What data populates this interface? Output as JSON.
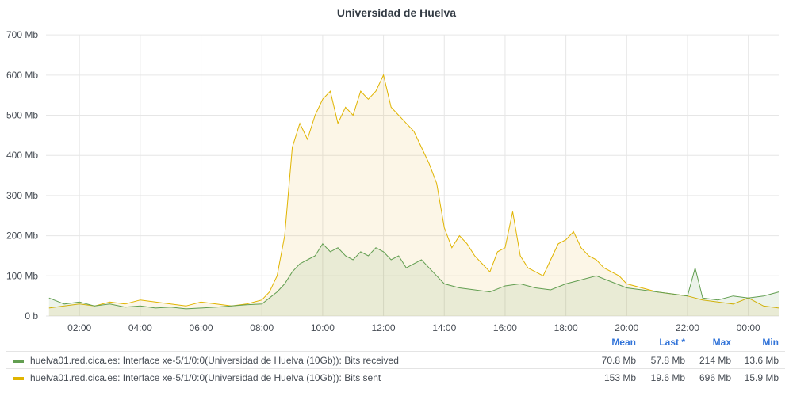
{
  "chart_data": {
    "type": "area",
    "title": "Universidad de Huelva",
    "x_ticks": [
      "02:00",
      "04:00",
      "06:00",
      "08:00",
      "10:00",
      "12:00",
      "14:00",
      "16:00",
      "18:00",
      "20:00",
      "22:00",
      "00:00"
    ],
    "y_ticks": [
      "0 b",
      "100 Mb",
      "200 Mb",
      "300 Mb",
      "400 Mb",
      "500 Mb",
      "600 Mb",
      "700 Mb"
    ],
    "ylim": [
      0,
      700
    ],
    "x_unit_note": "hours",
    "grid": true,
    "series": [
      {
        "name": "huelva01.red.cica.es: Interface xe-5/1/0:0(Universidad de Huelva (10Gb)): Bits received",
        "color": "#629e51",
        "fill": "rgba(98,158,81,0.12)",
        "x": [
          1.0,
          1.5,
          2.0,
          2.5,
          3.0,
          3.5,
          4.0,
          4.5,
          5.0,
          5.5,
          6.0,
          6.5,
          7.0,
          7.5,
          8.0,
          8.25,
          8.5,
          8.75,
          9.0,
          9.25,
          9.5,
          9.75,
          10.0,
          10.25,
          10.5,
          10.75,
          11.0,
          11.25,
          11.5,
          11.75,
          12.0,
          12.25,
          12.5,
          12.75,
          13.0,
          13.25,
          13.5,
          13.75,
          14.0,
          14.5,
          15.0,
          15.5,
          16.0,
          16.5,
          17.0,
          17.5,
          18.0,
          18.5,
          19.0,
          19.5,
          20.0,
          20.5,
          21.0,
          21.5,
          22.0,
          22.25,
          22.5,
          23.0,
          23.5,
          24.0,
          24.5,
          25.0
        ],
        "values": [
          45,
          30,
          35,
          25,
          30,
          22,
          25,
          20,
          22,
          18,
          20,
          22,
          25,
          28,
          30,
          45,
          60,
          80,
          110,
          130,
          140,
          150,
          180,
          160,
          170,
          150,
          140,
          160,
          150,
          170,
          160,
          140,
          150,
          120,
          130,
          140,
          120,
          100,
          80,
          70,
          65,
          60,
          75,
          80,
          70,
          65,
          80,
          90,
          100,
          85,
          70,
          65,
          60,
          55,
          50,
          120,
          45,
          40,
          50,
          45,
          50,
          60
        ],
        "mean": "70.8 Mb",
        "last": "57.8 Mb",
        "max": "214 Mb",
        "min": "13.6 Mb"
      },
      {
        "name": "huelva01.red.cica.es: Interface xe-5/1/0:0(Universidad de Huelva (10Gb)): Bits sent",
        "color": "#e0b400",
        "fill": "rgba(234,184,57,0.12)",
        "x": [
          1.0,
          1.5,
          2.0,
          2.5,
          3.0,
          3.5,
          4.0,
          4.5,
          5.0,
          5.5,
          6.0,
          6.5,
          7.0,
          7.5,
          8.0,
          8.25,
          8.5,
          8.75,
          9.0,
          9.25,
          9.5,
          9.75,
          10.0,
          10.25,
          10.5,
          10.75,
          11.0,
          11.25,
          11.5,
          11.75,
          12.0,
          12.25,
          12.5,
          12.75,
          13.0,
          13.25,
          13.5,
          13.75,
          14.0,
          14.25,
          14.5,
          14.75,
          15.0,
          15.25,
          15.5,
          15.75,
          16.0,
          16.25,
          16.5,
          16.75,
          17.0,
          17.25,
          17.5,
          17.75,
          18.0,
          18.25,
          18.5,
          18.75,
          19.0,
          19.25,
          19.5,
          19.75,
          20.0,
          20.5,
          21.0,
          21.5,
          22.0,
          22.5,
          23.0,
          23.5,
          24.0,
          24.5,
          25.0
        ],
        "values": [
          20,
          25,
          30,
          25,
          35,
          30,
          40,
          35,
          30,
          25,
          35,
          30,
          25,
          30,
          40,
          60,
          100,
          200,
          420,
          480,
          440,
          500,
          540,
          560,
          480,
          520,
          500,
          560,
          540,
          560,
          600,
          520,
          500,
          480,
          460,
          420,
          380,
          330,
          220,
          170,
          200,
          180,
          150,
          130,
          110,
          160,
          170,
          260,
          150,
          120,
          110,
          100,
          140,
          180,
          190,
          210,
          170,
          150,
          140,
          120,
          110,
          100,
          80,
          70,
          60,
          55,
          50,
          40,
          35,
          30,
          45,
          25,
          20
        ],
        "mean": "153 Mb",
        "last": "19.6 Mb",
        "max": "696 Mb",
        "min": "15.9 Mb"
      }
    ]
  },
  "legend": {
    "headers": {
      "mean": "Mean",
      "last": "Last *",
      "max": "Max",
      "min": "Min"
    }
  }
}
